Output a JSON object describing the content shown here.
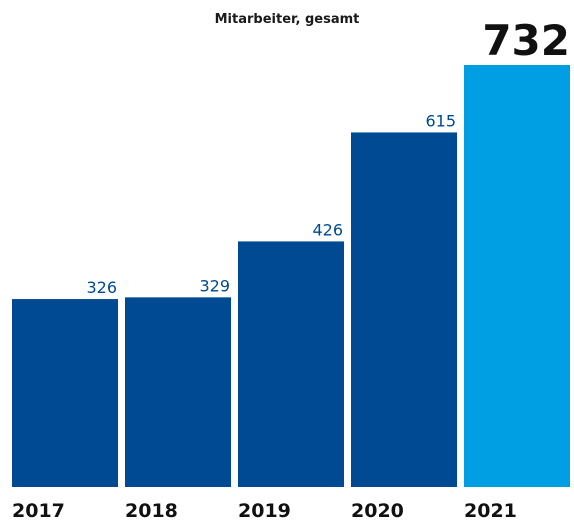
{
  "chart_data": {
    "type": "bar",
    "title": "Mitarbeiter, gesamt",
    "categories": [
      "2017",
      "2018",
      "2019",
      "2020",
      "2021"
    ],
    "values": [
      326,
      329,
      426,
      615,
      732
    ],
    "xlabel": "",
    "ylabel": "",
    "ylim": [
      0,
      732
    ],
    "grid": false,
    "legend": "none",
    "colors": {
      "bar": "#004a93",
      "highlight_bar": "#009fe3",
      "value_label": "#004a93",
      "highlight_label": "#111111",
      "category_label": "#111111"
    }
  }
}
